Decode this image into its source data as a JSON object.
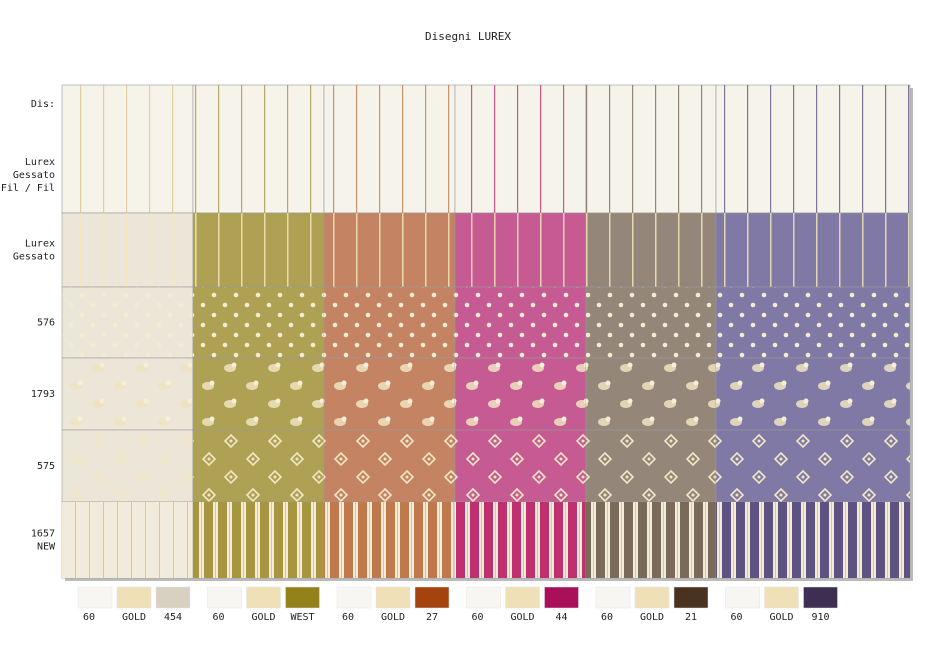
{
  "title": "Disegni LUREX",
  "header_label": "Dis:",
  "rows": [
    {
      "label": [
        "Lurex",
        "Gessato",
        "Fil / Fil"
      ]
    },
    {
      "label": [
        "Lurex",
        "Gessato"
      ]
    },
    {
      "label": [
        "576"
      ]
    },
    {
      "label": [
        "1793"
      ]
    },
    {
      "label": [
        "575"
      ]
    },
    {
      "label": [
        "1657",
        "NEW"
      ]
    }
  ],
  "chip_groups": [
    [
      {
        "label": "60",
        "color": "#f7f6f3"
      },
      {
        "label": "GOLD",
        "color": "#efe0b8"
      },
      {
        "label": "454",
        "color": "#d8d0c0"
      }
    ],
    [
      {
        "label": "60",
        "color": "#f7f6f3"
      },
      {
        "label": "GOLD",
        "color": "#efe0b8"
      },
      {
        "label": "WEST",
        "color": "#93821a"
      }
    ],
    [
      {
        "label": "60",
        "color": "#f7f6f3"
      },
      {
        "label": "GOLD",
        "color": "#efe0b8"
      },
      {
        "label": "27",
        "color": "#a5430f"
      }
    ],
    [
      {
        "label": "60",
        "color": "#f7f6f3"
      },
      {
        "label": "GOLD",
        "color": "#efe0b8"
      },
      {
        "label": "44",
        "color": "#a8105a"
      }
    ],
    [
      {
        "label": "60",
        "color": "#f7f6f3"
      },
      {
        "label": "GOLD",
        "color": "#efe0b8"
      },
      {
        "label": "21",
        "color": "#4a3220"
      }
    ],
    [
      {
        "label": "60",
        "color": "#f7f6f3"
      },
      {
        "label": "GOLD",
        "color": "#efe0b8"
      },
      {
        "label": "910",
        "color": "#3d2e52"
      }
    ]
  ]
}
